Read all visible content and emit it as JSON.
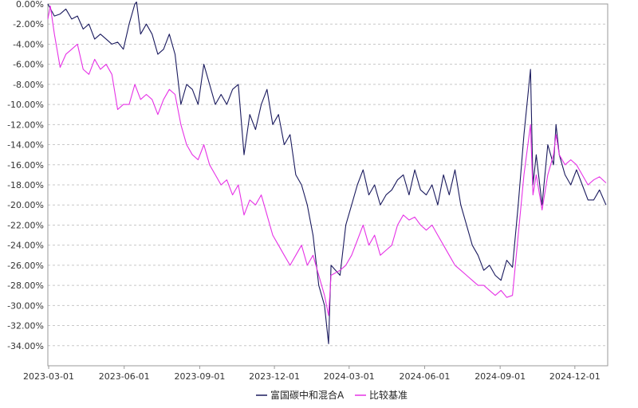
{
  "chart_data": {
    "type": "line",
    "x_type": "date",
    "xlim": [
      "2023-02-28",
      "2025-01-10"
    ],
    "ylim": [
      -0.36,
      0.0
    ],
    "y_format": "percent",
    "y_ticks": [
      0,
      -0.02,
      -0.04,
      -0.06,
      -0.08,
      -0.1,
      -0.12,
      -0.14,
      -0.16,
      -0.18,
      -0.2,
      -0.22,
      -0.24,
      -0.26,
      -0.28,
      -0.3,
      -0.32,
      -0.34
    ],
    "y_tick_labels": [
      "0.00%",
      "-2.00%",
      "-4.00%",
      "-6.00%",
      "-8.00%",
      "-10.00%",
      "-12.00%",
      "-14.00%",
      "-16.00%",
      "-18.00%",
      "-20.00%",
      "-22.00%",
      "-24.00%",
      "-26.00%",
      "-28.00%",
      "-30.00%",
      "-32.00%",
      "-34.00%"
    ],
    "x_ticks": [
      "2023-03-01",
      "2023-06-01",
      "2023-09-01",
      "2023-12-01",
      "2024-03-01",
      "2024-06-01",
      "2024-09-01",
      "2024-12-01"
    ],
    "x_tick_labels": [
      "2023-03-01",
      "2023-06-01",
      "2023-09-01",
      "2023-12-01",
      "2024-03-01",
      "2024-06-01",
      "2024-09-01",
      "2024-12-01"
    ],
    "grid": "horizontal-dashed",
    "legend_position": "bottom-center",
    "series": [
      {
        "name": "富国碳中和混合A",
        "color": "#1a1a5e",
        "points": [
          [
            "2023-02-28",
            0.0
          ],
          [
            "2023-03-08",
            -0.012
          ],
          [
            "2023-03-15",
            -0.01
          ],
          [
            "2023-03-22",
            -0.005
          ],
          [
            "2023-03-29",
            -0.015
          ],
          [
            "2023-04-05",
            -0.012
          ],
          [
            "2023-04-12",
            -0.025
          ],
          [
            "2023-04-19",
            -0.02
          ],
          [
            "2023-04-26",
            -0.035
          ],
          [
            "2023-05-03",
            -0.03
          ],
          [
            "2023-05-10",
            -0.035
          ],
          [
            "2023-05-17",
            -0.04
          ],
          [
            "2023-05-24",
            -0.038
          ],
          [
            "2023-05-31",
            -0.045
          ],
          [
            "2023-06-07",
            -0.02
          ],
          [
            "2023-06-14",
            0.0
          ],
          [
            "2023-06-16",
            0.002
          ],
          [
            "2023-06-21",
            -0.03
          ],
          [
            "2023-06-28",
            -0.02
          ],
          [
            "2023-07-05",
            -0.03
          ],
          [
            "2023-07-12",
            -0.05
          ],
          [
            "2023-07-19",
            -0.045
          ],
          [
            "2023-07-26",
            -0.03
          ],
          [
            "2023-08-02",
            -0.05
          ],
          [
            "2023-08-09",
            -0.1
          ],
          [
            "2023-08-16",
            -0.08
          ],
          [
            "2023-08-23",
            -0.085
          ],
          [
            "2023-08-30",
            -0.1
          ],
          [
            "2023-09-06",
            -0.06
          ],
          [
            "2023-09-13",
            -0.08
          ],
          [
            "2023-09-20",
            -0.1
          ],
          [
            "2023-09-27",
            -0.09
          ],
          [
            "2023-10-04",
            -0.1
          ],
          [
            "2023-10-11",
            -0.085
          ],
          [
            "2023-10-18",
            -0.08
          ],
          [
            "2023-10-25",
            -0.15
          ],
          [
            "2023-11-01",
            -0.11
          ],
          [
            "2023-11-08",
            -0.125
          ],
          [
            "2023-11-15",
            -0.1
          ],
          [
            "2023-11-22",
            -0.085
          ],
          [
            "2023-11-29",
            -0.12
          ],
          [
            "2023-12-06",
            -0.11
          ],
          [
            "2023-12-13",
            -0.14
          ],
          [
            "2023-12-20",
            -0.13
          ],
          [
            "2023-12-27",
            -0.17
          ],
          [
            "2024-01-03",
            -0.18
          ],
          [
            "2024-01-10",
            -0.2
          ],
          [
            "2024-01-17",
            -0.23
          ],
          [
            "2024-01-24",
            -0.28
          ],
          [
            "2024-01-31",
            -0.3
          ],
          [
            "2024-02-05",
            -0.338
          ],
          [
            "2024-02-08",
            -0.26
          ],
          [
            "2024-02-19",
            -0.27
          ],
          [
            "2024-02-26",
            -0.22
          ],
          [
            "2024-03-04",
            -0.2
          ],
          [
            "2024-03-11",
            -0.18
          ],
          [
            "2024-03-18",
            -0.165
          ],
          [
            "2024-03-25",
            -0.19
          ],
          [
            "2024-04-01",
            -0.18
          ],
          [
            "2024-04-08",
            -0.2
          ],
          [
            "2024-04-15",
            -0.19
          ],
          [
            "2024-04-22",
            -0.185
          ],
          [
            "2024-04-29",
            -0.175
          ],
          [
            "2024-05-06",
            -0.17
          ],
          [
            "2024-05-13",
            -0.19
          ],
          [
            "2024-05-20",
            -0.165
          ],
          [
            "2024-05-27",
            -0.185
          ],
          [
            "2024-06-03",
            -0.19
          ],
          [
            "2024-06-10",
            -0.18
          ],
          [
            "2024-06-17",
            -0.2
          ],
          [
            "2024-06-24",
            -0.17
          ],
          [
            "2024-07-01",
            -0.19
          ],
          [
            "2024-07-08",
            -0.165
          ],
          [
            "2024-07-15",
            -0.2
          ],
          [
            "2024-07-22",
            -0.22
          ],
          [
            "2024-07-29",
            -0.24
          ],
          [
            "2024-08-05",
            -0.25
          ],
          [
            "2024-08-12",
            -0.265
          ],
          [
            "2024-08-19",
            -0.26
          ],
          [
            "2024-08-26",
            -0.27
          ],
          [
            "2024-09-02",
            -0.275
          ],
          [
            "2024-09-09",
            -0.255
          ],
          [
            "2024-09-16",
            -0.262
          ],
          [
            "2024-09-23",
            -0.2
          ],
          [
            "2024-09-30",
            -0.13
          ],
          [
            "2024-10-08",
            -0.065
          ],
          [
            "2024-10-11",
            -0.18
          ],
          [
            "2024-10-15",
            -0.15
          ],
          [
            "2024-10-22",
            -0.2
          ],
          [
            "2024-10-29",
            -0.14
          ],
          [
            "2024-11-05",
            -0.16
          ],
          [
            "2024-11-08",
            -0.12
          ],
          [
            "2024-11-12",
            -0.15
          ],
          [
            "2024-11-19",
            -0.17
          ],
          [
            "2024-11-26",
            -0.18
          ],
          [
            "2024-12-03",
            -0.165
          ],
          [
            "2024-12-10",
            -0.18
          ],
          [
            "2024-12-17",
            -0.195
          ],
          [
            "2024-12-24",
            -0.195
          ],
          [
            "2024-12-31",
            -0.185
          ],
          [
            "2025-01-08",
            -0.2
          ]
        ]
      },
      {
        "name": "比较基准",
        "color": "#e632e6",
        "points": [
          [
            "2023-02-28",
            -0.015
          ],
          [
            "2023-03-03",
            -0.002
          ],
          [
            "2023-03-08",
            -0.03
          ],
          [
            "2023-03-15",
            -0.063
          ],
          [
            "2023-03-22",
            -0.05
          ],
          [
            "2023-03-29",
            -0.045
          ],
          [
            "2023-04-05",
            -0.04
          ],
          [
            "2023-04-12",
            -0.065
          ],
          [
            "2023-04-19",
            -0.07
          ],
          [
            "2023-04-26",
            -0.055
          ],
          [
            "2023-05-03",
            -0.065
          ],
          [
            "2023-05-10",
            -0.06
          ],
          [
            "2023-05-17",
            -0.07
          ],
          [
            "2023-05-24",
            -0.105
          ],
          [
            "2023-05-31",
            -0.1
          ],
          [
            "2023-06-07",
            -0.1
          ],
          [
            "2023-06-14",
            -0.08
          ],
          [
            "2023-06-21",
            -0.095
          ],
          [
            "2023-06-28",
            -0.09
          ],
          [
            "2023-07-05",
            -0.095
          ],
          [
            "2023-07-12",
            -0.11
          ],
          [
            "2023-07-19",
            -0.095
          ],
          [
            "2023-07-26",
            -0.085
          ],
          [
            "2023-08-02",
            -0.09
          ],
          [
            "2023-08-09",
            -0.12
          ],
          [
            "2023-08-16",
            -0.14
          ],
          [
            "2023-08-23",
            -0.15
          ],
          [
            "2023-08-30",
            -0.155
          ],
          [
            "2023-09-06",
            -0.14
          ],
          [
            "2023-09-13",
            -0.16
          ],
          [
            "2023-09-20",
            -0.17
          ],
          [
            "2023-09-27",
            -0.18
          ],
          [
            "2023-10-04",
            -0.175
          ],
          [
            "2023-10-11",
            -0.19
          ],
          [
            "2023-10-18",
            -0.18
          ],
          [
            "2023-10-25",
            -0.21
          ],
          [
            "2023-11-01",
            -0.195
          ],
          [
            "2023-11-08",
            -0.2
          ],
          [
            "2023-11-15",
            -0.19
          ],
          [
            "2023-11-22",
            -0.21
          ],
          [
            "2023-11-29",
            -0.23
          ],
          [
            "2023-12-06",
            -0.24
          ],
          [
            "2023-12-13",
            -0.25
          ],
          [
            "2023-12-20",
            -0.26
          ],
          [
            "2023-12-27",
            -0.25
          ],
          [
            "2024-01-03",
            -0.24
          ],
          [
            "2024-01-10",
            -0.26
          ],
          [
            "2024-01-17",
            -0.25
          ],
          [
            "2024-01-24",
            -0.27
          ],
          [
            "2024-01-31",
            -0.29
          ],
          [
            "2024-02-05",
            -0.31
          ],
          [
            "2024-02-08",
            -0.27
          ],
          [
            "2024-02-19",
            -0.265
          ],
          [
            "2024-02-26",
            -0.26
          ],
          [
            "2024-03-04",
            -0.25
          ],
          [
            "2024-03-11",
            -0.235
          ],
          [
            "2024-03-18",
            -0.22
          ],
          [
            "2024-03-25",
            -0.24
          ],
          [
            "2024-04-01",
            -0.23
          ],
          [
            "2024-04-08",
            -0.25
          ],
          [
            "2024-04-15",
            -0.245
          ],
          [
            "2024-04-22",
            -0.24
          ],
          [
            "2024-04-29",
            -0.22
          ],
          [
            "2024-05-06",
            -0.21
          ],
          [
            "2024-05-13",
            -0.215
          ],
          [
            "2024-05-20",
            -0.212
          ],
          [
            "2024-05-27",
            -0.22
          ],
          [
            "2024-06-03",
            -0.225
          ],
          [
            "2024-06-10",
            -0.22
          ],
          [
            "2024-06-17",
            -0.23
          ],
          [
            "2024-06-24",
            -0.24
          ],
          [
            "2024-07-01",
            -0.25
          ],
          [
            "2024-07-08",
            -0.26
          ],
          [
            "2024-07-15",
            -0.265
          ],
          [
            "2024-07-22",
            -0.27
          ],
          [
            "2024-07-29",
            -0.275
          ],
          [
            "2024-08-05",
            -0.28
          ],
          [
            "2024-08-12",
            -0.28
          ],
          [
            "2024-08-19",
            -0.285
          ],
          [
            "2024-08-26",
            -0.29
          ],
          [
            "2024-09-02",
            -0.285
          ],
          [
            "2024-09-09",
            -0.292
          ],
          [
            "2024-09-16",
            -0.29
          ],
          [
            "2024-09-23",
            -0.23
          ],
          [
            "2024-09-30",
            -0.17
          ],
          [
            "2024-10-08",
            -0.12
          ],
          [
            "2024-10-11",
            -0.19
          ],
          [
            "2024-10-15",
            -0.17
          ],
          [
            "2024-10-22",
            -0.205
          ],
          [
            "2024-10-29",
            -0.17
          ],
          [
            "2024-11-05",
            -0.15
          ],
          [
            "2024-11-08",
            -0.13
          ],
          [
            "2024-11-12",
            -0.15
          ],
          [
            "2024-11-19",
            -0.16
          ],
          [
            "2024-11-26",
            -0.155
          ],
          [
            "2024-12-03",
            -0.16
          ],
          [
            "2024-12-10",
            -0.17
          ],
          [
            "2024-12-17",
            -0.18
          ],
          [
            "2024-12-24",
            -0.175
          ],
          [
            "2024-12-31",
            -0.172
          ],
          [
            "2025-01-08",
            -0.178
          ]
        ]
      }
    ]
  }
}
